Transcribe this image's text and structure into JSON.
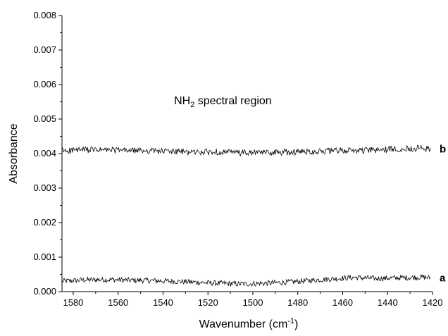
{
  "chart_data": {
    "type": "line",
    "title": "",
    "xlabel": "Wavenumber (cm",
    "xlabel_sup": "-1",
    "xlabel_end": ")",
    "ylabel": "Absorbance",
    "xlim": [
      1585,
      1420
    ],
    "ylim": [
      0,
      0.008
    ],
    "x_reversed": true,
    "grid": false,
    "x_ticks": [
      "1580",
      "1560",
      "1540",
      "1520",
      "1500",
      "1480",
      "1460",
      "1440",
      "1420"
    ],
    "y_ticks": [
      "0.000",
      "0.001",
      "0.002",
      "0.003",
      "0.004",
      "0.005",
      "0.006",
      "0.007",
      "0.008"
    ],
    "annotation": {
      "text_main": "NH",
      "text_sub": "2",
      "text_rest": " spectral region",
      "x": 1510,
      "y": 0.00555
    },
    "series": [
      {
        "label": "a",
        "x": [
          1585,
          1575,
          1565,
          1555,
          1545,
          1535,
          1525,
          1515,
          1505,
          1495,
          1485,
          1475,
          1465,
          1455,
          1445,
          1435,
          1425,
          1421
        ],
        "values": [
          0.0003,
          0.00034,
          0.00035,
          0.00033,
          0.00032,
          0.0003,
          0.00027,
          0.00024,
          0.00022,
          0.00024,
          0.00027,
          0.00032,
          0.00037,
          0.00041,
          0.00038,
          0.0004,
          0.00042,
          0.0004
        ],
        "noise": 8e-05
      },
      {
        "label": "b",
        "x": [
          1585,
          1575,
          1565,
          1555,
          1545,
          1535,
          1525,
          1515,
          1505,
          1495,
          1485,
          1475,
          1465,
          1455,
          1445,
          1435,
          1425,
          1421
        ],
        "values": [
          0.00408,
          0.00411,
          0.0041,
          0.00409,
          0.00408,
          0.00406,
          0.00404,
          0.00405,
          0.00402,
          0.00403,
          0.00404,
          0.00406,
          0.00408,
          0.00409,
          0.0041,
          0.00414,
          0.00416,
          0.00413
        ],
        "noise": 9e-05
      }
    ]
  }
}
